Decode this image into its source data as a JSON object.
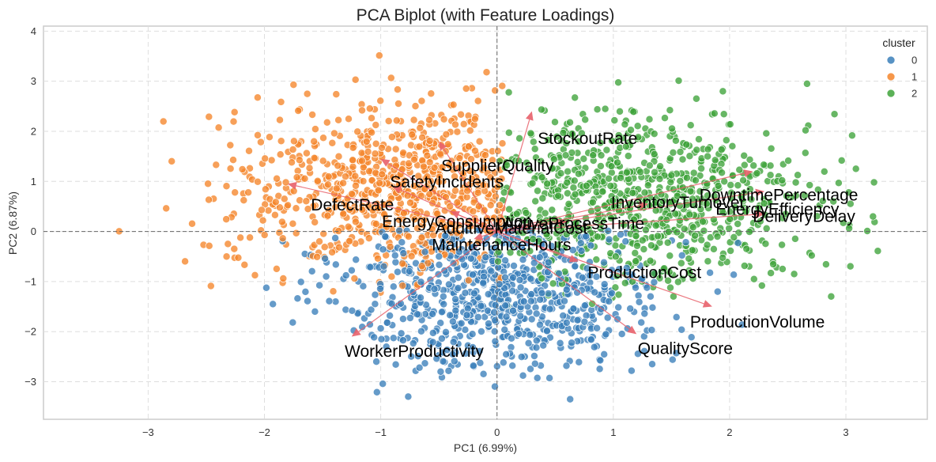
{
  "chart_data": {
    "type": "scatter",
    "title": "PCA Biplot (with Feature Loadings)",
    "xlabel": "PC1 (6.99%)",
    "ylabel": "PC2 (6.87%)",
    "xlim": [
      -3.9,
      3.7
    ],
    "ylim": [
      -3.75,
      4.1
    ],
    "x_ticks": [
      -3,
      -2,
      -1,
      0,
      1,
      2,
      3
    ],
    "x_tick_labels": [
      "−3",
      "−2",
      "−1",
      "0",
      "1",
      "2",
      "3"
    ],
    "y_ticks": [
      -3,
      -2,
      -1,
      0,
      1,
      2,
      3,
      4
    ],
    "y_tick_labels": [
      "−3",
      "−2",
      "−1",
      "0",
      "1",
      "2",
      "3",
      "4"
    ],
    "grid": true,
    "legend": {
      "title": "cluster",
      "position": "top-right",
      "entries": [
        {
          "label": "0",
          "color": "#3A7FBA"
        },
        {
          "label": "1",
          "color": "#F5852A"
        },
        {
          "label": "2",
          "color": "#3EA33A"
        }
      ]
    },
    "loadings": [
      {
        "name": "StockoutRate",
        "x": 0.3,
        "y": 2.4,
        "label_x": 0.35,
        "label_y": 1.75
      },
      {
        "name": "SupplierQuality",
        "x": -0.5,
        "y": 1.8,
        "label_x": -0.48,
        "label_y": 1.2
      },
      {
        "name": "SafetyIncidents",
        "x": -1.0,
        "y": 1.45,
        "label_x": -0.92,
        "label_y": 0.88
      },
      {
        "name": "DefectRate",
        "x": -1.8,
        "y": 0.95,
        "label_x": -1.6,
        "label_y": 0.42
      },
      {
        "name": "EnergyConsumption",
        "x": -0.9,
        "y": 0.9,
        "label_x": -0.99,
        "label_y": 0.09
      },
      {
        "name": "AdditiveMaterialCost",
        "x": -0.4,
        "y": 0.4,
        "label_x": -0.53,
        "label_y": -0.05
      },
      {
        "name": "ActiveProcessTime",
        "x": 0.6,
        "y": 0.2,
        "label_x": 0.05,
        "label_y": 0.05
      },
      {
        "name": "MaintenanceHours",
        "x": -0.2,
        "y": -0.15,
        "label_x": -0.56,
        "label_y": -0.38
      },
      {
        "name": "InventoryTurnover",
        "x": 1.3,
        "y": 0.55,
        "label_x": 0.98,
        "label_y": 0.47
      },
      {
        "name": "DowntimePercentage",
        "x": 2.2,
        "y": 1.2,
        "label_x": 1.74,
        "label_y": 0.62
      },
      {
        "name": "EnergyEfficiency",
        "x": 2.3,
        "y": 0.8,
        "label_x": 1.88,
        "label_y": 0.33
      },
      {
        "name": "DeliveryDelay",
        "x": 2.3,
        "y": 0.35,
        "label_x": 2.2,
        "label_y": 0.19
      },
      {
        "name": "ProductionCost",
        "x": 0.7,
        "y": -0.6,
        "label_x": 0.78,
        "label_y": -0.93
      },
      {
        "name": "ProductionVolume",
        "x": 1.85,
        "y": -1.5,
        "label_x": 1.66,
        "label_y": -1.92
      },
      {
        "name": "QualityScore",
        "x": 1.2,
        "y": -2.05,
        "label_x": 1.21,
        "label_y": -2.45
      },
      {
        "name": "WorkerProductivity",
        "x": -1.25,
        "y": -2.1,
        "label_x": -1.31,
        "label_y": -2.5
      }
    ]
  }
}
